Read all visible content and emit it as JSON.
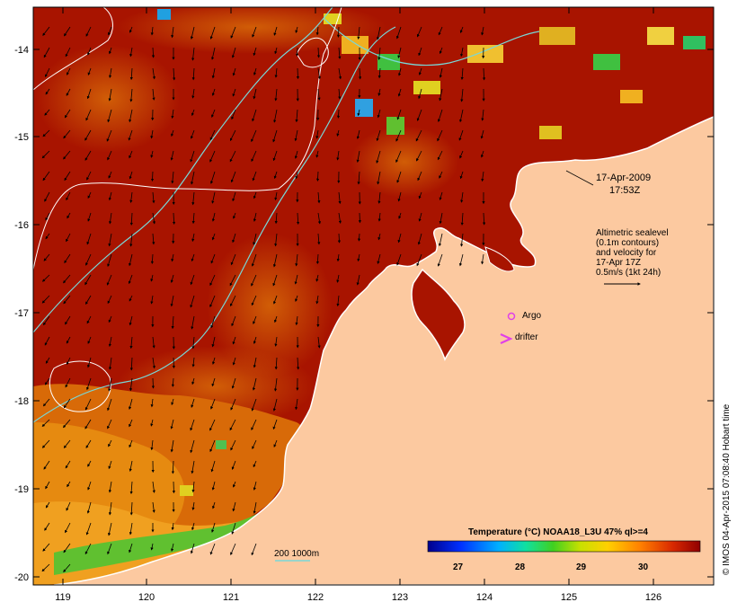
{
  "map": {
    "lon_labels": [
      "119",
      "120",
      "121",
      "122",
      "123",
      "124",
      "125",
      "126"
    ],
    "lat_labels": [
      "-14",
      "-15",
      "-16",
      "-17",
      "-18",
      "-19",
      "-20"
    ]
  },
  "annotations": {
    "timestamp_line1": "17-Apr-2009",
    "timestamp_line2": "17:53Z",
    "altimetry_lines": [
      "Altimetric sealevel",
      "(0.1m contours)",
      "and velocity for",
      "17-Apr 17Z",
      "0.5m/s (1kt 24h)"
    ],
    "argo_label": "Argo",
    "drifter_label": "drifter",
    "depth_legend": "200  1000m"
  },
  "colorbar": {
    "title": "Temperature (°C) NOAA18_L3U 47% ql>=4",
    "ticks": [
      "27",
      "28",
      "29",
      "30"
    ]
  },
  "credit": "© IMOS 04-Apr-2015 07:08:40 Hobart time",
  "colors": {
    "land": "#fcc9a0",
    "sea_warm": "#a81400",
    "sea_mid": "#c84a06",
    "sea_orange": "#e68a10",
    "contour": "#78d8d8",
    "sealevel": "#ffffff",
    "argo": "#e040e8"
  }
}
